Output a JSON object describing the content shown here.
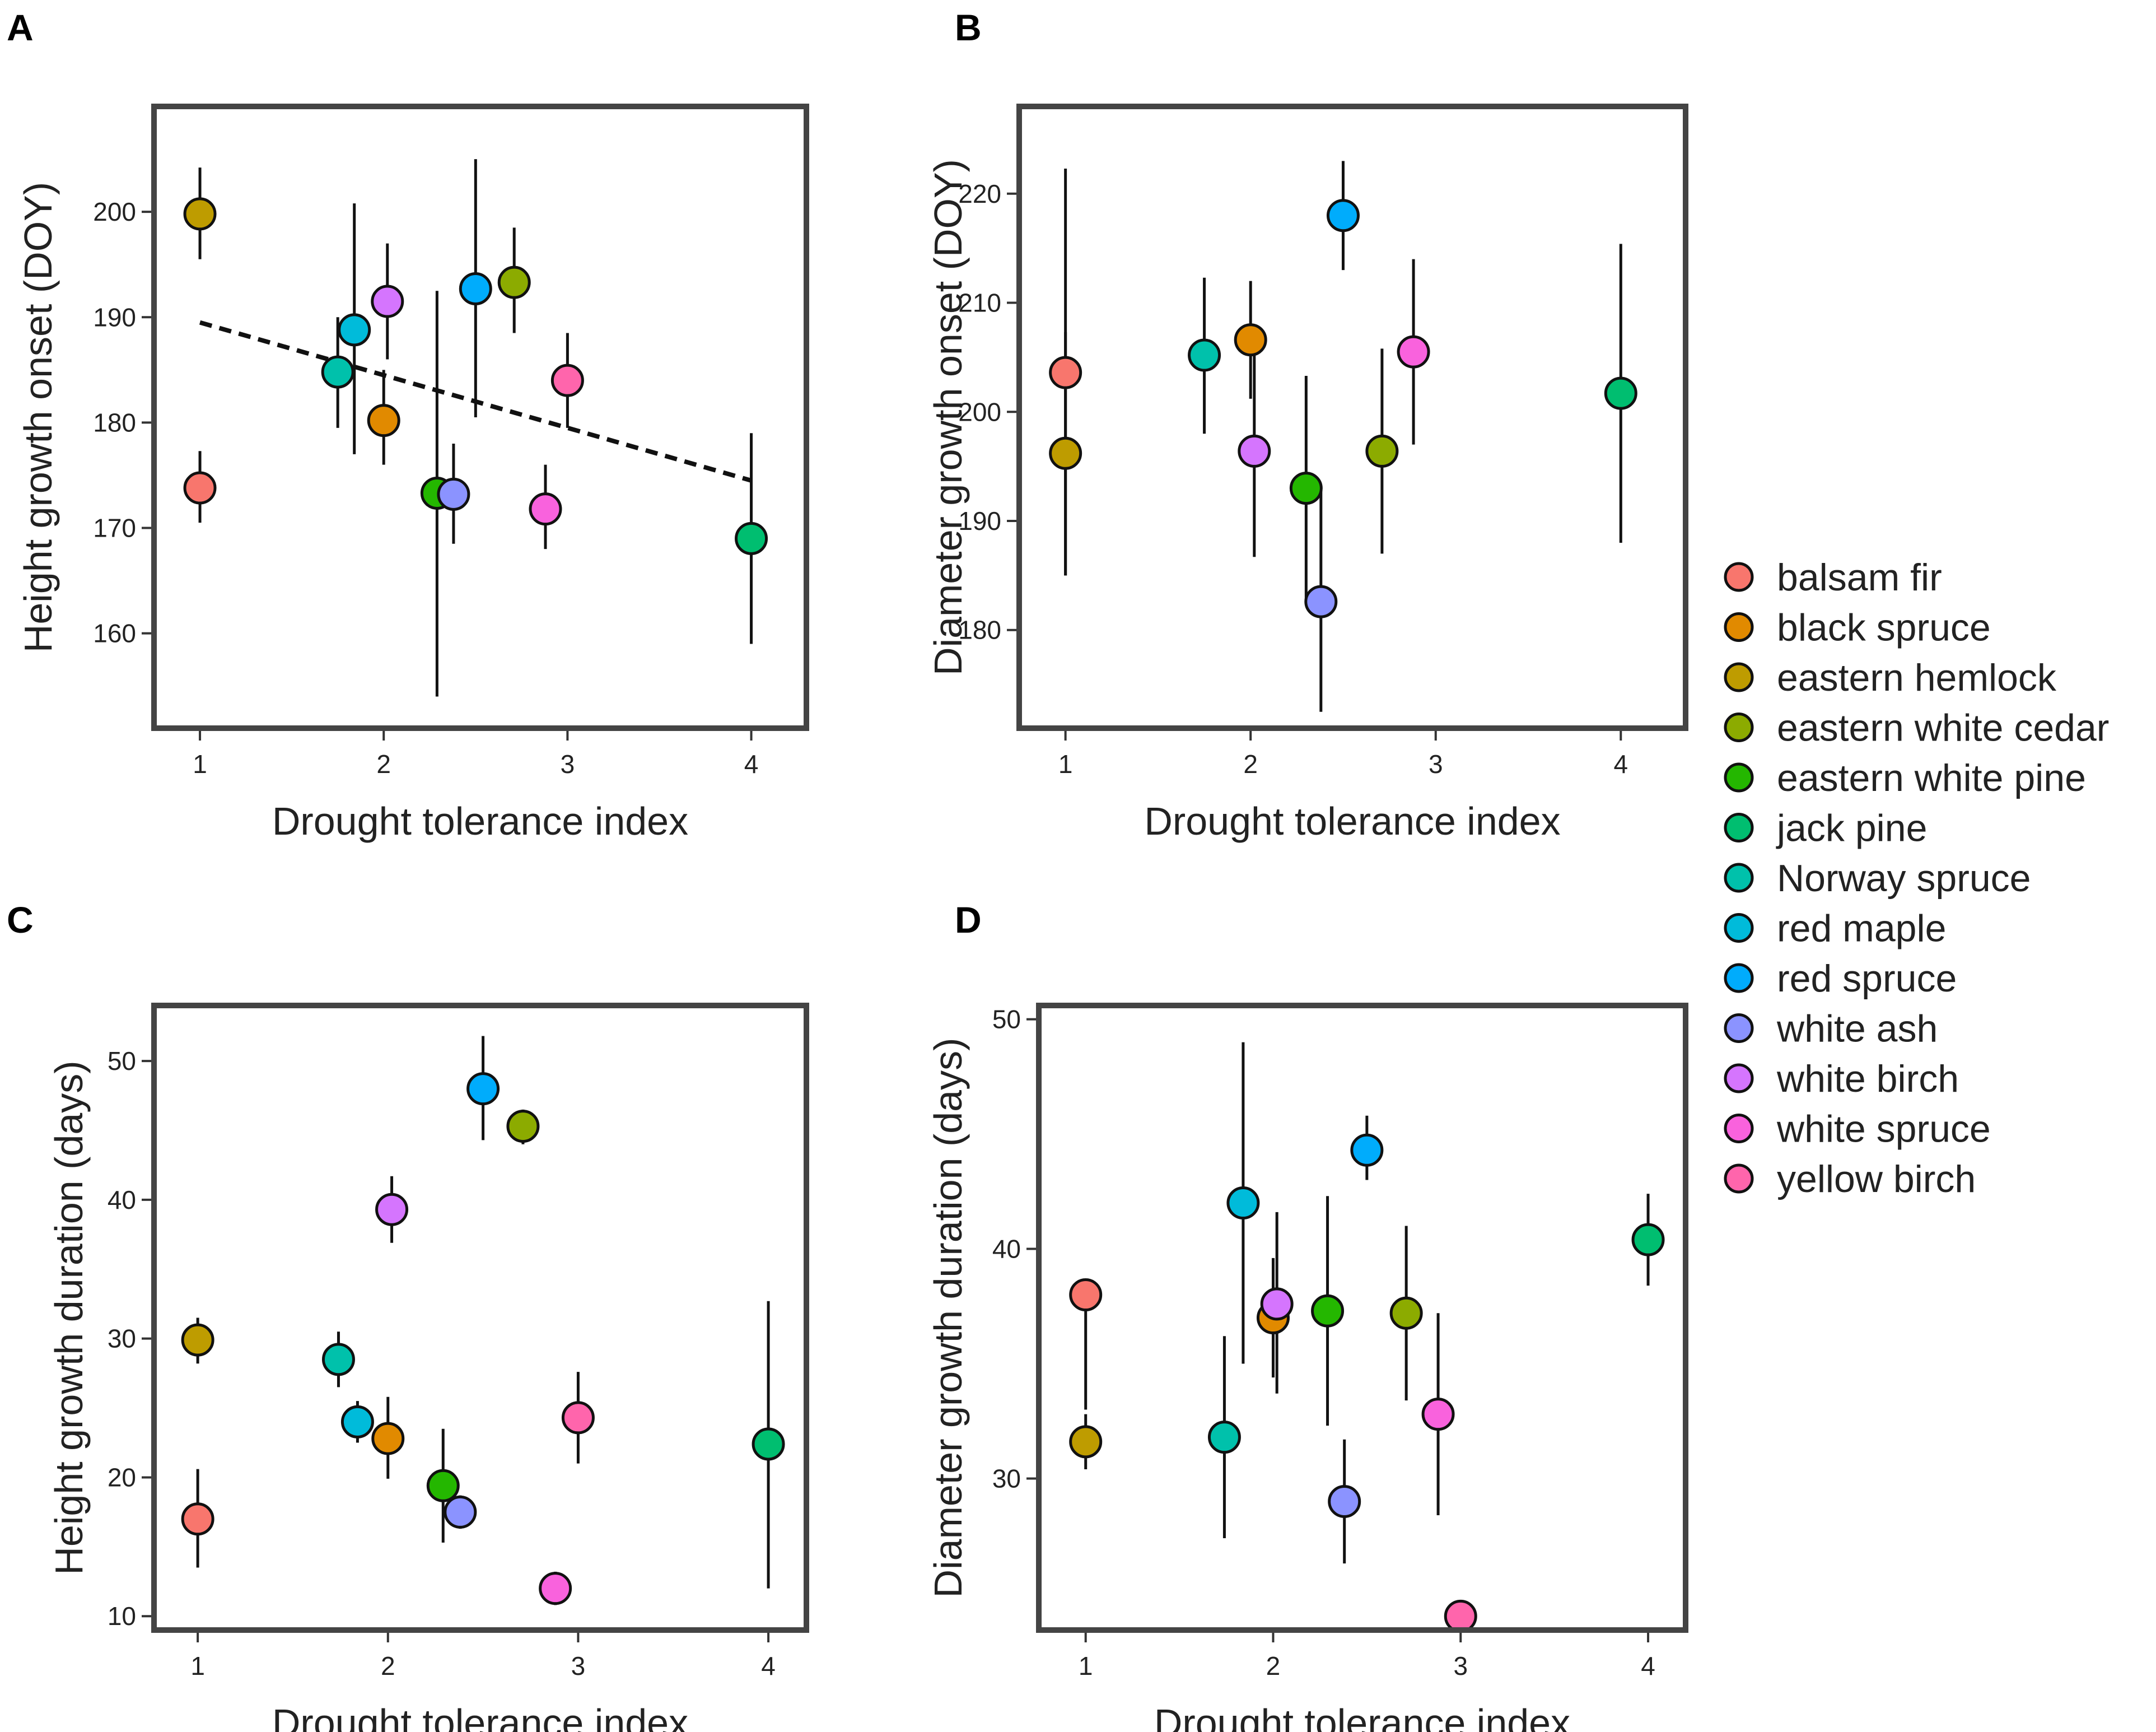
{
  "legend": {
    "entries": [
      {
        "name": "balsam fir",
        "color": "#F8766D"
      },
      {
        "name": "black spruce",
        "color": "#E18A00"
      },
      {
        "name": "eastern hemlock",
        "color": "#BE9C00"
      },
      {
        "name": "eastern white cedar",
        "color": "#8CAB00"
      },
      {
        "name": "eastern white pine",
        "color": "#24B700"
      },
      {
        "name": "jack pine",
        "color": "#00BE70"
      },
      {
        "name": "Norway spruce",
        "color": "#00C1AB"
      },
      {
        "name": "red maple",
        "color": "#00BBDA"
      },
      {
        "name": "red spruce",
        "color": "#00ACFC"
      },
      {
        "name": "white ash",
        "color": "#8B93FF"
      },
      {
        "name": "white birch",
        "color": "#D575FE"
      },
      {
        "name": "white spruce",
        "color": "#F962DD"
      },
      {
        "name": "yellow birch",
        "color": "#FF65AC"
      }
    ]
  },
  "chart_data": [
    {
      "panel": "A",
      "type": "scatter",
      "xlabel": "Drought tolerance index",
      "ylabel": "Height growth onset (DOY)",
      "xlim": [
        0.75,
        4.3
      ],
      "ylim": [
        151,
        210
      ],
      "xticks": [
        1,
        2,
        3,
        4
      ],
      "yticks": [
        160,
        170,
        180,
        190,
        200
      ],
      "trendline": {
        "x": [
          1,
          4
        ],
        "y": [
          189.5,
          174.5
        ],
        "style": "dashed"
      },
      "points": [
        {
          "species": "balsam fir",
          "x": 1.0,
          "y": 173.8,
          "lo": 170.5,
          "hi": 177.3
        },
        {
          "species": "eastern hemlock",
          "x": 1.0,
          "y": 199.8,
          "lo": 195.5,
          "hi": 204.2
        },
        {
          "species": "Norway spruce",
          "x": 1.75,
          "y": 184.8,
          "lo": 179.5,
          "hi": 190.0
        },
        {
          "species": "red maple",
          "x": 1.84,
          "y": 188.8,
          "lo": 177.0,
          "hi": 200.8
        },
        {
          "species": "black spruce",
          "x": 2.0,
          "y": 180.2,
          "lo": 176.0,
          "hi": 185.0
        },
        {
          "species": "white birch",
          "x": 2.02,
          "y": 191.5,
          "lo": 186.0,
          "hi": 197.0
        },
        {
          "species": "eastern white pine",
          "x": 2.29,
          "y": 173.3,
          "lo": 154.0,
          "hi": 192.5
        },
        {
          "species": "white ash",
          "x": 2.38,
          "y": 173.2,
          "lo": 168.5,
          "hi": 178.0
        },
        {
          "species": "red spruce",
          "x": 2.5,
          "y": 192.7,
          "lo": 180.5,
          "hi": 205.0
        },
        {
          "species": "eastern white cedar",
          "x": 2.71,
          "y": 193.3,
          "lo": 188.5,
          "hi": 198.5
        },
        {
          "species": "white spruce",
          "x": 2.88,
          "y": 171.8,
          "lo": 168.0,
          "hi": 176.0
        },
        {
          "species": "yellow birch",
          "x": 3.0,
          "y": 184.0,
          "lo": 179.5,
          "hi": 188.5
        },
        {
          "species": "jack pine",
          "x": 4.0,
          "y": 169.0,
          "lo": 159.0,
          "hi": 179.0
        }
      ]
    },
    {
      "panel": "B",
      "type": "scatter",
      "xlabel": "Drought tolerance index",
      "ylabel": "Diameter growth onset (DOY)",
      "xlim": [
        0.75,
        4.35
      ],
      "ylim": [
        171,
        228
      ],
      "xticks": [
        1,
        2,
        3,
        4
      ],
      "yticks": [
        180,
        190,
        200,
        210,
        220
      ],
      "points": [
        {
          "species": "balsam fir",
          "x": 1.0,
          "y": 203.6,
          "lo": 185.0,
          "hi": 222.3
        },
        {
          "species": "eastern hemlock",
          "x": 1.0,
          "y": 196.2,
          "lo": 185.0,
          "hi": 207.3
        },
        {
          "species": "Norway spruce",
          "x": 1.75,
          "y": 205.2,
          "lo": 198.0,
          "hi": 212.3
        },
        {
          "species": "black spruce",
          "x": 2.0,
          "y": 206.6,
          "lo": 201.2,
          "hi": 212.0
        },
        {
          "species": "white birch",
          "x": 2.02,
          "y": 196.4,
          "lo": 186.7,
          "hi": 206.3
        },
        {
          "species": "eastern white pine",
          "x": 2.3,
          "y": 193.0,
          "lo": 182.7,
          "hi": 203.3
        },
        {
          "species": "white ash",
          "x": 2.38,
          "y": 182.6,
          "lo": 172.5,
          "hi": 192.8
        },
        {
          "species": "red spruce",
          "x": 2.5,
          "y": 218.0,
          "lo": 213.0,
          "hi": 223.0
        },
        {
          "species": "eastern white cedar",
          "x": 2.71,
          "y": 196.4,
          "lo": 187.0,
          "hi": 205.8
        },
        {
          "species": "white spruce",
          "x": 2.88,
          "y": 205.5,
          "lo": 197.0,
          "hi": 214.0
        },
        {
          "species": "jack pine",
          "x": 4.0,
          "y": 201.7,
          "lo": 188.0,
          "hi": 215.4
        }
      ]
    },
    {
      "panel": "C",
      "type": "scatter",
      "xlabel": "Drought tolerance index",
      "ylabel": "Height growth duration (days)",
      "xlim": [
        0.77,
        4.2
      ],
      "ylim": [
        9,
        54
      ],
      "xticks": [
        1,
        2,
        3,
        4
      ],
      "yticks": [
        10,
        20,
        30,
        40,
        50
      ],
      "points": [
        {
          "species": "balsam fir",
          "x": 1.0,
          "y": 17.0,
          "lo": 13.5,
          "hi": 20.6
        },
        {
          "species": "eastern hemlock",
          "x": 1.0,
          "y": 29.9,
          "lo": 28.2,
          "hi": 31.5
        },
        {
          "species": "Norway spruce",
          "x": 1.74,
          "y": 28.5,
          "lo": 26.5,
          "hi": 30.5
        },
        {
          "species": "red maple",
          "x": 1.84,
          "y": 24.0,
          "lo": 22.5,
          "hi": 25.5
        },
        {
          "species": "black spruce",
          "x": 2.0,
          "y": 22.8,
          "lo": 19.9,
          "hi": 25.8
        },
        {
          "species": "white birch",
          "x": 2.02,
          "y": 39.3,
          "lo": 36.9,
          "hi": 41.7
        },
        {
          "species": "eastern white pine",
          "x": 2.29,
          "y": 19.4,
          "lo": 15.3,
          "hi": 23.5
        },
        {
          "species": "white ash",
          "x": 2.38,
          "y": 17.5,
          "lo": 16.3,
          "hi": 18.7
        },
        {
          "species": "red spruce",
          "x": 2.5,
          "y": 48.0,
          "lo": 44.3,
          "hi": 51.8
        },
        {
          "species": "eastern white cedar",
          "x": 2.71,
          "y": 45.3,
          "lo": 44.0,
          "hi": 46.5
        },
        {
          "species": "white spruce",
          "x": 2.88,
          "y": 12.0,
          "lo": 10.8,
          "hi": 13.2
        },
        {
          "species": "yellow birch",
          "x": 3.0,
          "y": 24.3,
          "lo": 21.0,
          "hi": 27.6
        },
        {
          "species": "jack pine",
          "x": 4.0,
          "y": 22.4,
          "lo": 12.0,
          "hi": 32.7
        }
      ]
    },
    {
      "panel": "D",
      "type": "scatter",
      "xlabel": "Drought tolerance index",
      "ylabel": "Diameter growth duration (days)",
      "xlim": [
        0.75,
        4.2
      ],
      "ylim": [
        23.4,
        50.6
      ],
      "xticks": [
        1,
        2,
        3,
        4
      ],
      "yticks": [
        30,
        40,
        50
      ],
      "points": [
        {
          "species": "balsam fir",
          "x": 1.0,
          "y": 38.0,
          "lo": 33.0,
          "hi": 38.0
        },
        {
          "species": "eastern hemlock",
          "x": 1.0,
          "y": 31.6,
          "lo": 30.4,
          "hi": 32.8
        },
        {
          "species": "Norway spruce",
          "x": 1.74,
          "y": 31.8,
          "lo": 27.4,
          "hi": 36.2
        },
        {
          "species": "red maple",
          "x": 1.84,
          "y": 42.0,
          "lo": 35.0,
          "hi": 49.0
        },
        {
          "species": "black spruce",
          "x": 2.0,
          "y": 37.0,
          "lo": 34.4,
          "hi": 39.6
        },
        {
          "species": "white birch",
          "x": 2.02,
          "y": 37.6,
          "lo": 33.7,
          "hi": 41.6
        },
        {
          "species": "eastern white pine",
          "x": 2.29,
          "y": 37.3,
          "lo": 32.3,
          "hi": 42.3
        },
        {
          "species": "white ash",
          "x": 2.38,
          "y": 29.0,
          "lo": 26.3,
          "hi": 31.7
        },
        {
          "species": "red spruce",
          "x": 2.5,
          "y": 44.3,
          "lo": 43.0,
          "hi": 45.8
        },
        {
          "species": "eastern white cedar",
          "x": 2.71,
          "y": 37.2,
          "lo": 33.4,
          "hi": 41.0
        },
        {
          "species": "white spruce",
          "x": 2.88,
          "y": 32.8,
          "lo": 28.4,
          "hi": 37.2
        },
        {
          "species": "yellow birch",
          "x": 3.0,
          "y": 24.0,
          "lo": 24.0,
          "hi": 24.0
        },
        {
          "species": "jack pine",
          "x": 4.0,
          "y": 40.4,
          "lo": 38.4,
          "hi": 42.4
        }
      ]
    }
  ]
}
